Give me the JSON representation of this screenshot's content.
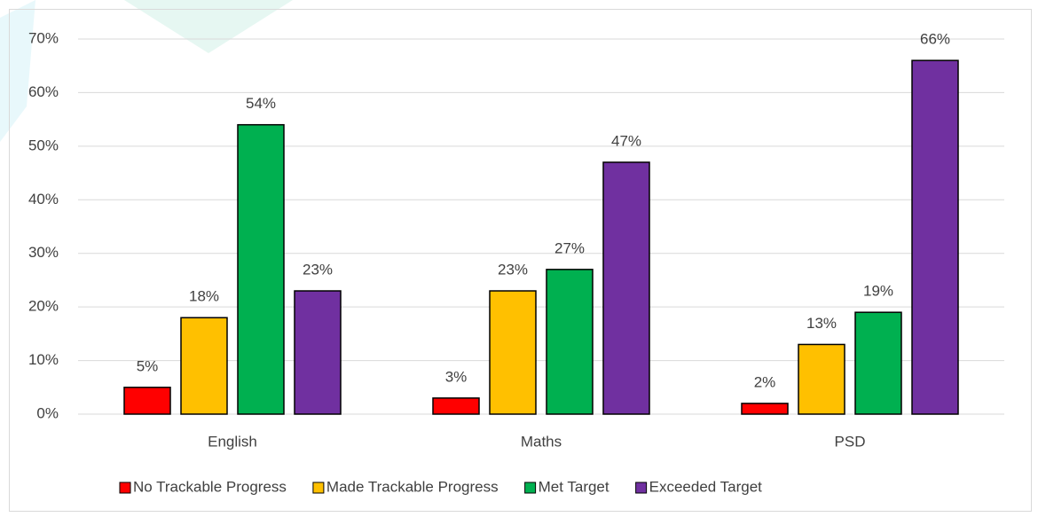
{
  "chart_data": {
    "type": "bar",
    "categories": [
      "English",
      "Maths",
      "PSD"
    ],
    "series": [
      {
        "name": "No Trackable Progress",
        "color": "#ff0000",
        "values": [
          5,
          3,
          2
        ],
        "value_labels": [
          "5%",
          "3%",
          "2%"
        ]
      },
      {
        "name": "Made Trackable Progress",
        "color": "#ffc000",
        "values": [
          18,
          23,
          13
        ],
        "value_labels": [
          "18%",
          "23%",
          "13%"
        ]
      },
      {
        "name": "Met Target",
        "color": "#00b050",
        "values": [
          54,
          27,
          19
        ],
        "value_labels": [
          "54%",
          "27%",
          "19%"
        ]
      },
      {
        "name": "Exceeded Target",
        "color": "#7030a0",
        "values": [
          23,
          47,
          66
        ],
        "value_labels": [
          "23%",
          "47%",
          "66%"
        ]
      }
    ],
    "ylim": [
      0,
      70
    ],
    "yticks": [
      {
        "value": 0,
        "label": "0%"
      },
      {
        "value": 10,
        "label": "10%"
      },
      {
        "value": 20,
        "label": "20%"
      },
      {
        "value": 30,
        "label": "30%"
      },
      {
        "value": 40,
        "label": "40%"
      },
      {
        "value": 50,
        "label": "50%"
      },
      {
        "value": 60,
        "label": "60%"
      },
      {
        "value": 70,
        "label": "70%"
      }
    ],
    "grid": true,
    "legend": "bottom"
  }
}
